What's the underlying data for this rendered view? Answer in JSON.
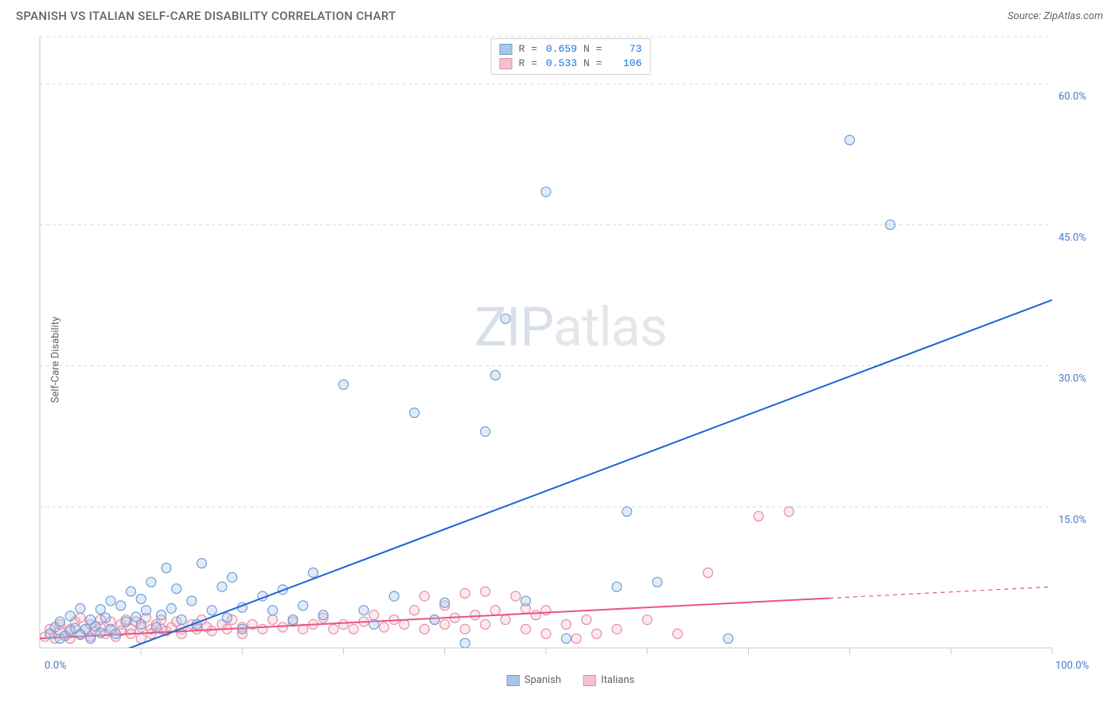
{
  "header": {
    "title": "SPANISH VS ITALIAN SELF-CARE DISABILITY CORRELATION CHART",
    "source_prefix": "Source: ",
    "source_name": "ZipAtlas.com"
  },
  "chart": {
    "type": "scatter",
    "ylabel": "Self-Care Disability",
    "watermark_z": "ZIP",
    "watermark_rest": "atlas",
    "background_color": "#ffffff",
    "grid_color": "#d8d8d8",
    "axis_color": "#c9c9c9",
    "frame_color": "#d0d0d0",
    "xlim": [
      0,
      100
    ],
    "ylim": [
      0,
      65
    ],
    "ytick_values": [
      15.0,
      30.0,
      45.0,
      60.0
    ],
    "ytick_labels": [
      "15.0%",
      "30.0%",
      "45.0%",
      "60.0%"
    ],
    "x_left_label": "0.0%",
    "x_right_label": "100.0%",
    "xtick_positions": [
      10,
      20,
      30,
      40,
      50,
      60,
      70,
      80,
      90,
      100
    ],
    "marker_radius": 6,
    "marker_stroke_width": 1.2,
    "fill_opacity": 0.35,
    "line_width": 2.0,
    "series": {
      "spanish": {
        "label": "Spanish",
        "color_fill": "#a9c6ea",
        "color_stroke": "#6f9ed6",
        "line_color": "#1f64d4",
        "R": "0.659",
        "N": "73",
        "trend": {
          "x1": 4,
          "y1": -2.0,
          "x2": 100,
          "y2": 37.0,
          "solid_until_x": 100
        },
        "points": [
          [
            1,
            1.5
          ],
          [
            1.5,
            2.2
          ],
          [
            2,
            1.0
          ],
          [
            2,
            2.8
          ],
          [
            2.5,
            1.3
          ],
          [
            3,
            3.4
          ],
          [
            3,
            1.8
          ],
          [
            3.5,
            2.1
          ],
          [
            4,
            4.2
          ],
          [
            4,
            1.4
          ],
          [
            4.5,
            2.0
          ],
          [
            5,
            1.0
          ],
          [
            5,
            3.0
          ],
          [
            5.5,
            2.3
          ],
          [
            6,
            4.1
          ],
          [
            6,
            1.6
          ],
          [
            6.5,
            3.2
          ],
          [
            7,
            5.0
          ],
          [
            7,
            2.0
          ],
          [
            7.5,
            1.5
          ],
          [
            8,
            4.5
          ],
          [
            8.5,
            2.8
          ],
          [
            9,
            6.0
          ],
          [
            9.5,
            3.3
          ],
          [
            10,
            2.5
          ],
          [
            10,
            5.2
          ],
          [
            10.5,
            4.0
          ],
          [
            11,
            7.0
          ],
          [
            11.5,
            2.2
          ],
          [
            12,
            3.5
          ],
          [
            12.5,
            8.5
          ],
          [
            13,
            4.2
          ],
          [
            13.5,
            6.3
          ],
          [
            14,
            3.0
          ],
          [
            15,
            5.0
          ],
          [
            15.5,
            2.5
          ],
          [
            16,
            9.0
          ],
          [
            17,
            4.0
          ],
          [
            18,
            6.5
          ],
          [
            18.5,
            3.2
          ],
          [
            19,
            7.5
          ],
          [
            20,
            4.3
          ],
          [
            20,
            2.0
          ],
          [
            22,
            5.5
          ],
          [
            23,
            4.0
          ],
          [
            24,
            6.2
          ],
          [
            25,
            3.0
          ],
          [
            26,
            4.5
          ],
          [
            27,
            8.0
          ],
          [
            28,
            3.5
          ],
          [
            30,
            28.0
          ],
          [
            32,
            4.0
          ],
          [
            33,
            2.5
          ],
          [
            35,
            5.5
          ],
          [
            37,
            25.0
          ],
          [
            39,
            3.0
          ],
          [
            40,
            4.8
          ],
          [
            42,
            0.5
          ],
          [
            44,
            23.0
          ],
          [
            45,
            29.0
          ],
          [
            46,
            35.0
          ],
          [
            48,
            5.0
          ],
          [
            50,
            48.5
          ],
          [
            52,
            1.0
          ],
          [
            57,
            6.5
          ],
          [
            58,
            14.5
          ],
          [
            61,
            7.0
          ],
          [
            68,
            1.0
          ],
          [
            80,
            54.0
          ],
          [
            84,
            45.0
          ]
        ]
      },
      "italian": {
        "label": "Italians",
        "color_fill": "#f5c1cd",
        "color_stroke": "#e38fa4",
        "line_color": "#e75480",
        "R": "0.533",
        "N": "106",
        "trend": {
          "x1": 0,
          "y1": 1.0,
          "x2": 100,
          "y2": 6.5,
          "solid_until_x": 78
        },
        "points": [
          [
            0.5,
            1.2
          ],
          [
            1,
            1.5
          ],
          [
            1,
            2.0
          ],
          [
            1.5,
            1.0
          ],
          [
            2,
            1.8
          ],
          [
            2,
            2.5
          ],
          [
            2.5,
            1.3
          ],
          [
            3,
            2.0
          ],
          [
            3,
            1.0
          ],
          [
            3.5,
            2.8
          ],
          [
            4,
            1.5
          ],
          [
            4,
            3.2
          ],
          [
            4.5,
            2.0
          ],
          [
            5,
            1.2
          ],
          [
            5,
            2.5
          ],
          [
            5.5,
            1.8
          ],
          [
            6,
            2.2
          ],
          [
            6,
            3.0
          ],
          [
            6.5,
            1.5
          ],
          [
            7,
            2.0
          ],
          [
            7,
            2.8
          ],
          [
            7.5,
            1.2
          ],
          [
            8,
            2.5
          ],
          [
            8,
            1.8
          ],
          [
            8.5,
            3.0
          ],
          [
            9,
            2.0
          ],
          [
            9,
            1.5
          ],
          [
            9.5,
            2.8
          ],
          [
            10,
            2.2
          ],
          [
            10,
            1.0
          ],
          [
            10.5,
            3.2
          ],
          [
            11,
            2.0
          ],
          [
            11,
            1.5
          ],
          [
            11.5,
            2.5
          ],
          [
            12,
            2.0
          ],
          [
            12,
            3.0
          ],
          [
            12.5,
            1.8
          ],
          [
            13,
            2.2
          ],
          [
            13.5,
            2.8
          ],
          [
            14,
            2.0
          ],
          [
            14,
            1.5
          ],
          [
            15,
            2.5
          ],
          [
            15.5,
            2.0
          ],
          [
            16,
            3.0
          ],
          [
            16.5,
            2.2
          ],
          [
            17,
            1.8
          ],
          [
            18,
            2.5
          ],
          [
            18.5,
            2.0
          ],
          [
            19,
            3.0
          ],
          [
            20,
            2.2
          ],
          [
            20,
            1.5
          ],
          [
            21,
            2.5
          ],
          [
            22,
            2.0
          ],
          [
            23,
            3.0
          ],
          [
            24,
            2.2
          ],
          [
            25,
            2.8
          ],
          [
            26,
            2.0
          ],
          [
            27,
            2.5
          ],
          [
            28,
            3.2
          ],
          [
            29,
            2.0
          ],
          [
            30,
            2.5
          ],
          [
            31,
            2.0
          ],
          [
            32,
            2.8
          ],
          [
            33,
            3.5
          ],
          [
            34,
            2.2
          ],
          [
            35,
            3.0
          ],
          [
            36,
            2.5
          ],
          [
            37,
            4.0
          ],
          [
            38,
            5.5
          ],
          [
            38,
            2.0
          ],
          [
            39,
            3.0
          ],
          [
            40,
            4.5
          ],
          [
            40,
            2.5
          ],
          [
            41,
            3.2
          ],
          [
            42,
            5.8
          ],
          [
            42,
            2.0
          ],
          [
            43,
            3.5
          ],
          [
            44,
            6.0
          ],
          [
            44,
            2.5
          ],
          [
            45,
            4.0
          ],
          [
            46,
            3.0
          ],
          [
            47,
            5.5
          ],
          [
            48,
            2.0
          ],
          [
            48,
            4.2
          ],
          [
            49,
            3.5
          ],
          [
            50,
            1.5
          ],
          [
            50,
            4.0
          ],
          [
            52,
            2.5
          ],
          [
            53,
            1.0
          ],
          [
            54,
            3.0
          ],
          [
            55,
            1.5
          ],
          [
            57,
            2.0
          ],
          [
            60,
            3.0
          ],
          [
            63,
            1.5
          ],
          [
            66,
            8.0
          ],
          [
            71,
            14.0
          ],
          [
            74,
            14.5
          ]
        ]
      }
    },
    "legend_top": {
      "rlabel": "R =",
      "nlabel": "N ="
    }
  }
}
